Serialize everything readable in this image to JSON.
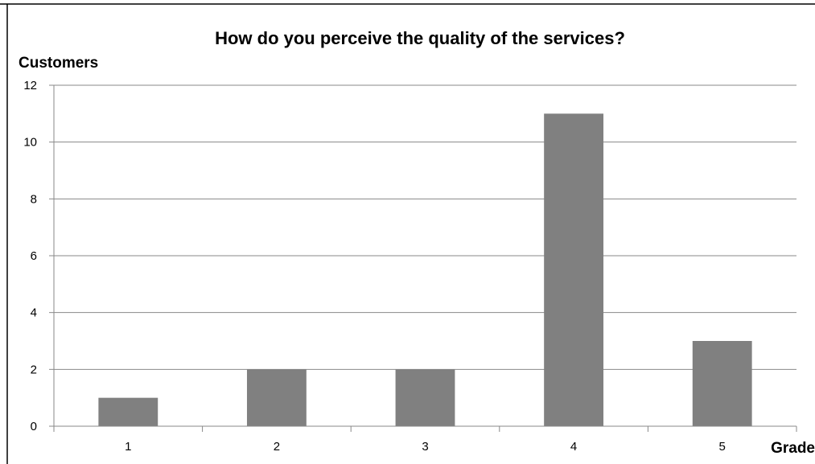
{
  "chart_data": {
    "type": "bar",
    "title": "How do you perceive the quality of the services?",
    "xlabel": "Grade",
    "ylabel": "Customers",
    "categories": [
      "1",
      "2",
      "3",
      "4",
      "5"
    ],
    "values": [
      1,
      2,
      2,
      11,
      3
    ],
    "ylim": [
      0,
      12
    ],
    "yticks": [
      0,
      2,
      4,
      6,
      8,
      10,
      12
    ],
    "grid": true,
    "legend": "none",
    "colors": {
      "bar": "#808080",
      "gridline": "#888888",
      "axis": "#888888",
      "frame": "#000000"
    }
  }
}
